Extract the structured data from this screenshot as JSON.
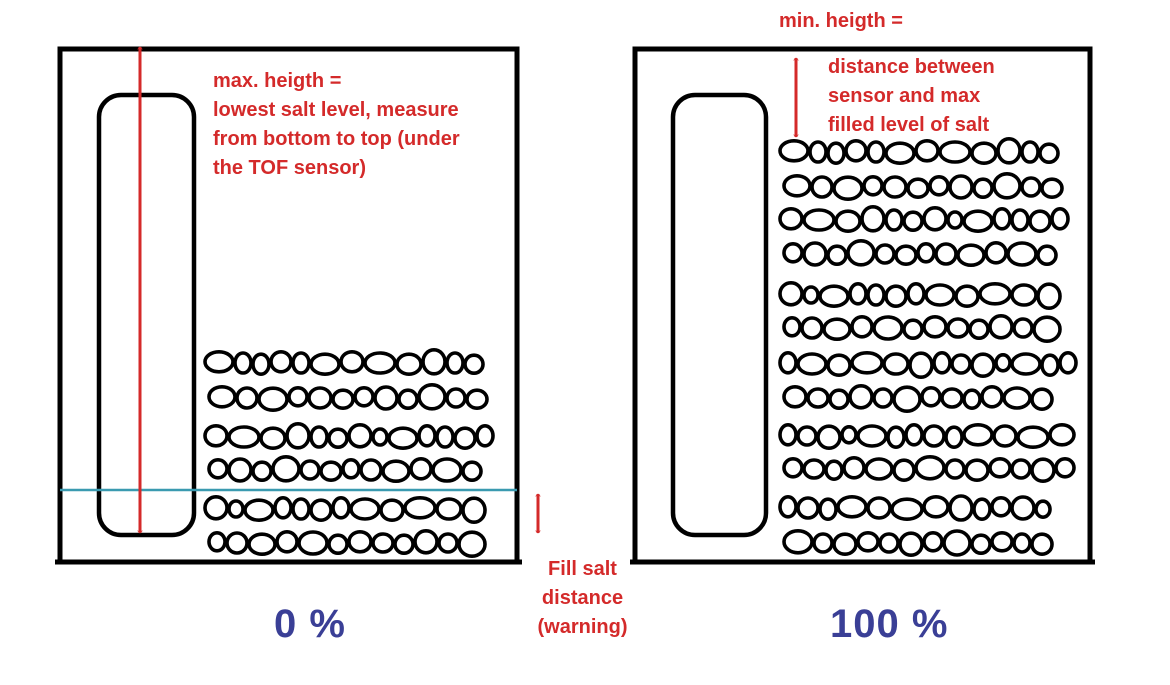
{
  "colors": {
    "annotation": "#d42a2a",
    "outline": "#000000",
    "level_line": "#3a9ab0",
    "percent_label": "#3a3f96"
  },
  "left_panel": {
    "percent_label": "0 %",
    "max_height_label": {
      "lines": [
        "max. heigth =",
        "lowest salt level, measure",
        "from bottom to top (under",
        "the TOF sensor)"
      ]
    },
    "fill_salt_label": {
      "lines": [
        "Fill salt",
        "distance",
        "(warning)"
      ]
    }
  },
  "right_panel": {
    "percent_label": "100 %",
    "min_height_title": "min. heigth =",
    "min_height_label": {
      "lines": [
        "distance between",
        "sensor and max",
        "filled level of salt"
      ]
    }
  }
}
